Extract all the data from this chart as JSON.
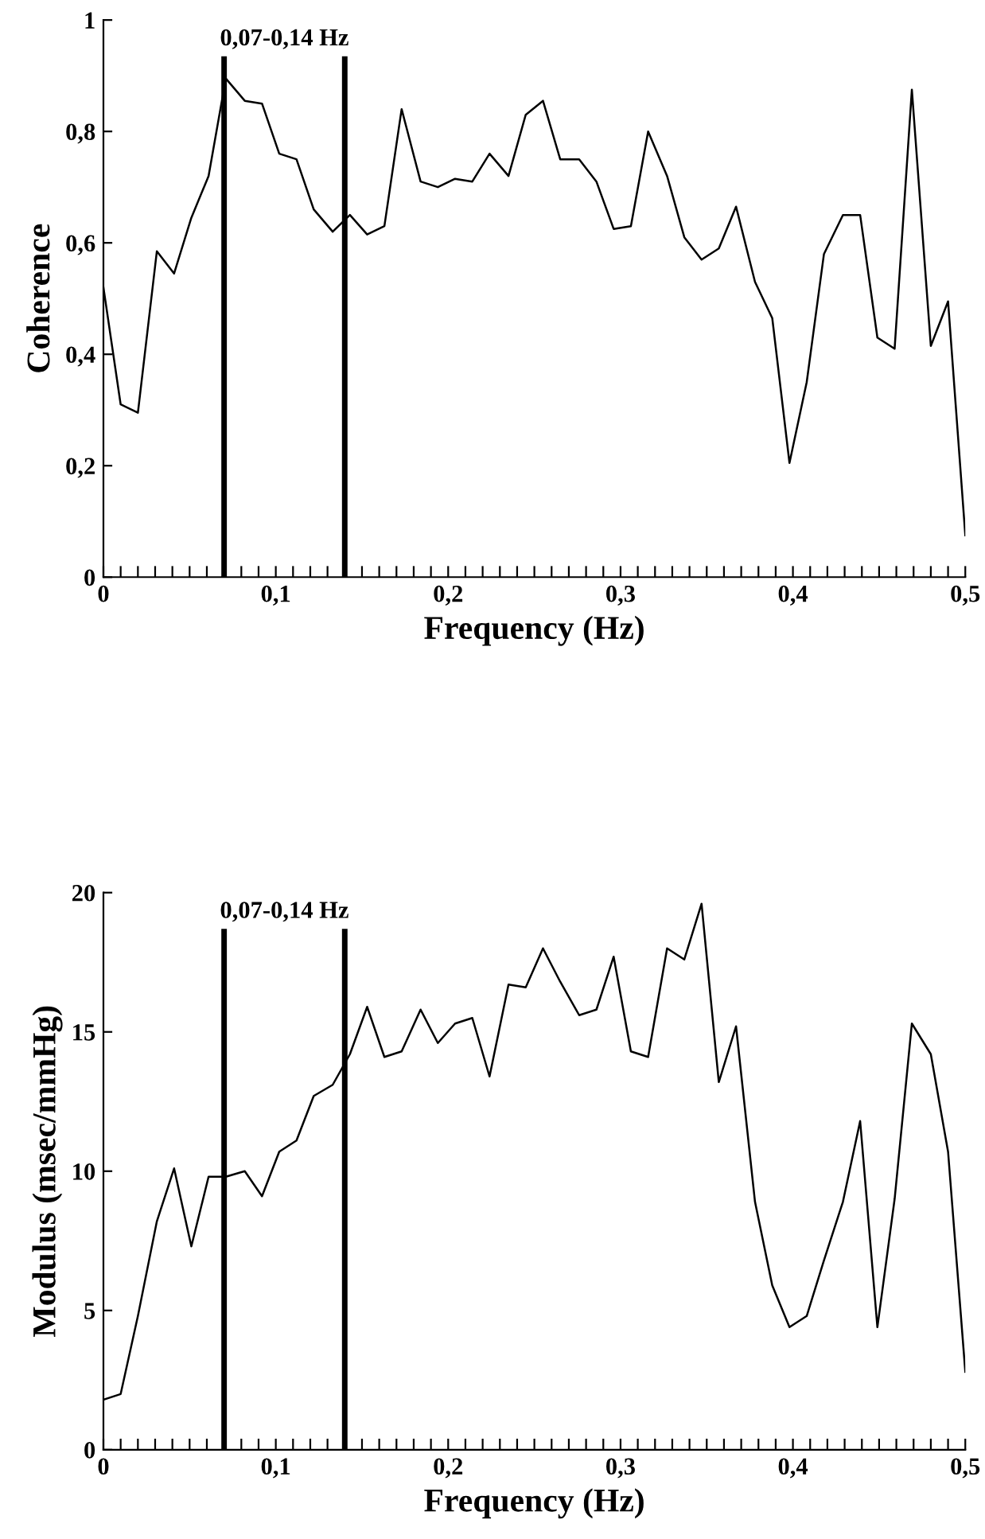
{
  "chart_data": [
    {
      "type": "line",
      "xlabel": "Frequency (Hz)",
      "ylabel": "Coherence",
      "color": "#000000",
      "x": [
        0,
        0.01,
        0.02,
        0.031,
        0.041,
        0.051,
        0.061,
        0.071,
        0.082,
        0.092,
        0.102,
        0.112,
        0.122,
        0.133,
        0.143,
        0.153,
        0.163,
        0.173,
        0.184,
        0.194,
        0.204,
        0.214,
        0.224,
        0.235,
        0.245,
        0.255,
        0.265,
        0.276,
        0.286,
        0.296,
        0.306,
        0.316,
        0.327,
        0.337,
        0.347,
        0.357,
        0.367,
        0.378,
        0.388,
        0.398,
        0.408,
        0.418,
        0.429,
        0.439,
        0.449,
        0.459,
        0.469,
        0.48,
        0.49,
        0.5
      ],
      "values": [
        0.52,
        0.31,
        0.295,
        0.585,
        0.545,
        0.645,
        0.72,
        0.895,
        0.855,
        0.85,
        0.76,
        0.75,
        0.66,
        0.62,
        0.65,
        0.615,
        0.63,
        0.84,
        0.71,
        0.7,
        0.715,
        0.71,
        0.76,
        0.72,
        0.83,
        0.855,
        0.75,
        0.75,
        0.71,
        0.625,
        0.63,
        0.8,
        0.72,
        0.61,
        0.57,
        0.59,
        0.665,
        0.53,
        0.465,
        0.205,
        0.35,
        0.58,
        0.65,
        0.65,
        0.43,
        0.41,
        0.875,
        0.415,
        0.495,
        0.075
      ],
      "xlim": [
        0,
        0.5
      ],
      "ylim": [
        0,
        1
      ],
      "xticks": [
        0,
        {
          "value": 0.01,
          "label": null
        },
        {
          "value": 0.02,
          "label": null
        },
        {
          "value": 0.03,
          "label": null
        },
        {
          "value": 0.04,
          "label": null
        },
        {
          "value": 0.05,
          "label": null
        },
        {
          "value": 0.06,
          "label": null
        },
        {
          "value": 0.07,
          "label": null
        },
        {
          "value": 0.08,
          "label": null
        },
        {
          "value": 0.09,
          "label": null
        },
        {
          "value": 0.1,
          "label": "0,1"
        },
        {
          "value": 0.11,
          "label": null
        },
        {
          "value": 0.12,
          "label": null
        },
        {
          "value": 0.13,
          "label": null
        },
        {
          "value": 0.14,
          "label": null
        },
        {
          "value": 0.15,
          "label": null
        },
        {
          "value": 0.16,
          "label": null
        },
        {
          "value": 0.17,
          "label": null
        },
        {
          "value": 0.18,
          "label": null
        },
        {
          "value": 0.19,
          "label": null
        },
        {
          "value": 0.2,
          "label": "0,2"
        },
        {
          "value": 0.21,
          "label": null
        },
        {
          "value": 0.22,
          "label": null
        },
        {
          "value": 0.23,
          "label": null
        },
        {
          "value": 0.24,
          "label": null
        },
        {
          "value": 0.25,
          "label": null
        },
        {
          "value": 0.26,
          "label": null
        },
        {
          "value": 0.27,
          "label": null
        },
        {
          "value": 0.28,
          "label": null
        },
        {
          "value": 0.29,
          "label": null
        },
        {
          "value": 0.3,
          "label": "0,3"
        },
        {
          "value": 0.31,
          "label": null
        },
        {
          "value": 0.32,
          "label": null
        },
        {
          "value": 0.33,
          "label": null
        },
        {
          "value": 0.34,
          "label": null
        },
        {
          "value": 0.35,
          "label": null
        },
        {
          "value": 0.36,
          "label": null
        },
        {
          "value": 0.37,
          "label": null
        },
        {
          "value": 0.38,
          "label": null
        },
        {
          "value": 0.39,
          "label": null
        },
        {
          "value": 0.4,
          "label": "0,4"
        },
        {
          "value": 0.41,
          "label": null
        },
        {
          "value": 0.42,
          "label": null
        },
        {
          "value": 0.43,
          "label": null
        },
        {
          "value": 0.44,
          "label": null
        },
        {
          "value": 0.45,
          "label": null
        },
        {
          "value": 0.46,
          "label": null
        },
        {
          "value": 0.47,
          "label": null
        },
        {
          "value": 0.48,
          "label": null
        },
        {
          "value": 0.49,
          "label": null
        },
        {
          "value": 0.5,
          "label": "0,5"
        }
      ],
      "yticks": [
        0,
        {
          "value": 0.2,
          "label": "0,2"
        },
        {
          "value": 0.4,
          "label": "0,4"
        },
        {
          "value": 0.6,
          "label": "0,6"
        },
        {
          "value": 0.8,
          "label": "0,8"
        },
        1
      ],
      "ref_lines": [
        {
          "axis": "x",
          "value": 0.07,
          "color": "#000000"
        },
        {
          "axis": "x",
          "value": 0.14,
          "color": "#000000"
        }
      ],
      "annotations": [
        "0,07-0,14 Hz"
      ],
      "grid": false
    },
    {
      "type": "line",
      "xlabel": "Frequency (Hz)",
      "ylabel": "Modulus (msec/mmHg)",
      "color": "#000000",
      "x": [
        0,
        0.01,
        0.02,
        0.031,
        0.041,
        0.051,
        0.061,
        0.071,
        0.082,
        0.092,
        0.102,
        0.112,
        0.122,
        0.133,
        0.143,
        0.153,
        0.163,
        0.173,
        0.184,
        0.194,
        0.204,
        0.214,
        0.224,
        0.235,
        0.245,
        0.255,
        0.265,
        0.276,
        0.286,
        0.296,
        0.306,
        0.316,
        0.327,
        0.337,
        0.347,
        0.357,
        0.367,
        0.378,
        0.388,
        0.398,
        0.408,
        0.418,
        0.429,
        0.439,
        0.449,
        0.459,
        0.469,
        0.48,
        0.49,
        0.5
      ],
      "values": [
        1.8,
        2.0,
        4.8,
        8.2,
        10.1,
        7.3,
        9.8,
        9.8,
        10.0,
        9.1,
        10.7,
        11.1,
        12.7,
        13.1,
        14.2,
        15.9,
        14.1,
        14.3,
        15.8,
        14.6,
        15.3,
        15.5,
        13.4,
        16.7,
        16.6,
        18.0,
        16.8,
        15.6,
        15.8,
        17.7,
        14.3,
        14.1,
        18.0,
        17.6,
        19.6,
        13.2,
        15.2,
        8.9,
        5.9,
        4.4,
        4.8,
        6.8,
        8.9,
        11.8,
        4.4,
        9.0,
        15.3,
        14.2,
        10.7,
        2.8
      ],
      "xlim": [
        0,
        0.5
      ],
      "ylim": [
        0,
        20
      ],
      "xticks": [
        0,
        {
          "value": 0.01,
          "label": null
        },
        {
          "value": 0.02,
          "label": null
        },
        {
          "value": 0.03,
          "label": null
        },
        {
          "value": 0.04,
          "label": null
        },
        {
          "value": 0.05,
          "label": null
        },
        {
          "value": 0.06,
          "label": null
        },
        {
          "value": 0.07,
          "label": null
        },
        {
          "value": 0.08,
          "label": null
        },
        {
          "value": 0.09,
          "label": null
        },
        {
          "value": 0.1,
          "label": "0,1"
        },
        {
          "value": 0.11,
          "label": null
        },
        {
          "value": 0.12,
          "label": null
        },
        {
          "value": 0.13,
          "label": null
        },
        {
          "value": 0.14,
          "label": null
        },
        {
          "value": 0.15,
          "label": null
        },
        {
          "value": 0.16,
          "label": null
        },
        {
          "value": 0.17,
          "label": null
        },
        {
          "value": 0.18,
          "label": null
        },
        {
          "value": 0.19,
          "label": null
        },
        {
          "value": 0.2,
          "label": "0,2"
        },
        {
          "value": 0.21,
          "label": null
        },
        {
          "value": 0.22,
          "label": null
        },
        {
          "value": 0.23,
          "label": null
        },
        {
          "value": 0.24,
          "label": null
        },
        {
          "value": 0.25,
          "label": null
        },
        {
          "value": 0.26,
          "label": null
        },
        {
          "value": 0.27,
          "label": null
        },
        {
          "value": 0.28,
          "label": null
        },
        {
          "value": 0.29,
          "label": null
        },
        {
          "value": 0.3,
          "label": "0,3"
        },
        {
          "value": 0.31,
          "label": null
        },
        {
          "value": 0.32,
          "label": null
        },
        {
          "value": 0.33,
          "label": null
        },
        {
          "value": 0.34,
          "label": null
        },
        {
          "value": 0.35,
          "label": null
        },
        {
          "value": 0.36,
          "label": null
        },
        {
          "value": 0.37,
          "label": null
        },
        {
          "value": 0.38,
          "label": null
        },
        {
          "value": 0.39,
          "label": null
        },
        {
          "value": 0.4,
          "label": "0,4"
        },
        {
          "value": 0.41,
          "label": null
        },
        {
          "value": 0.42,
          "label": null
        },
        {
          "value": 0.43,
          "label": null
        },
        {
          "value": 0.44,
          "label": null
        },
        {
          "value": 0.45,
          "label": null
        },
        {
          "value": 0.46,
          "label": null
        },
        {
          "value": 0.47,
          "label": null
        },
        {
          "value": 0.48,
          "label": null
        },
        {
          "value": 0.49,
          "label": null
        },
        {
          "value": 0.5,
          "label": "0,5"
        }
      ],
      "yticks": [
        0,
        5,
        10,
        15,
        20
      ],
      "ref_lines": [
        {
          "axis": "x",
          "value": 0.07,
          "color": "#000000"
        },
        {
          "axis": "x",
          "value": 0.14,
          "color": "#000000"
        }
      ],
      "annotations": [
        "0,07-0,14 Hz"
      ],
      "grid": false
    }
  ]
}
